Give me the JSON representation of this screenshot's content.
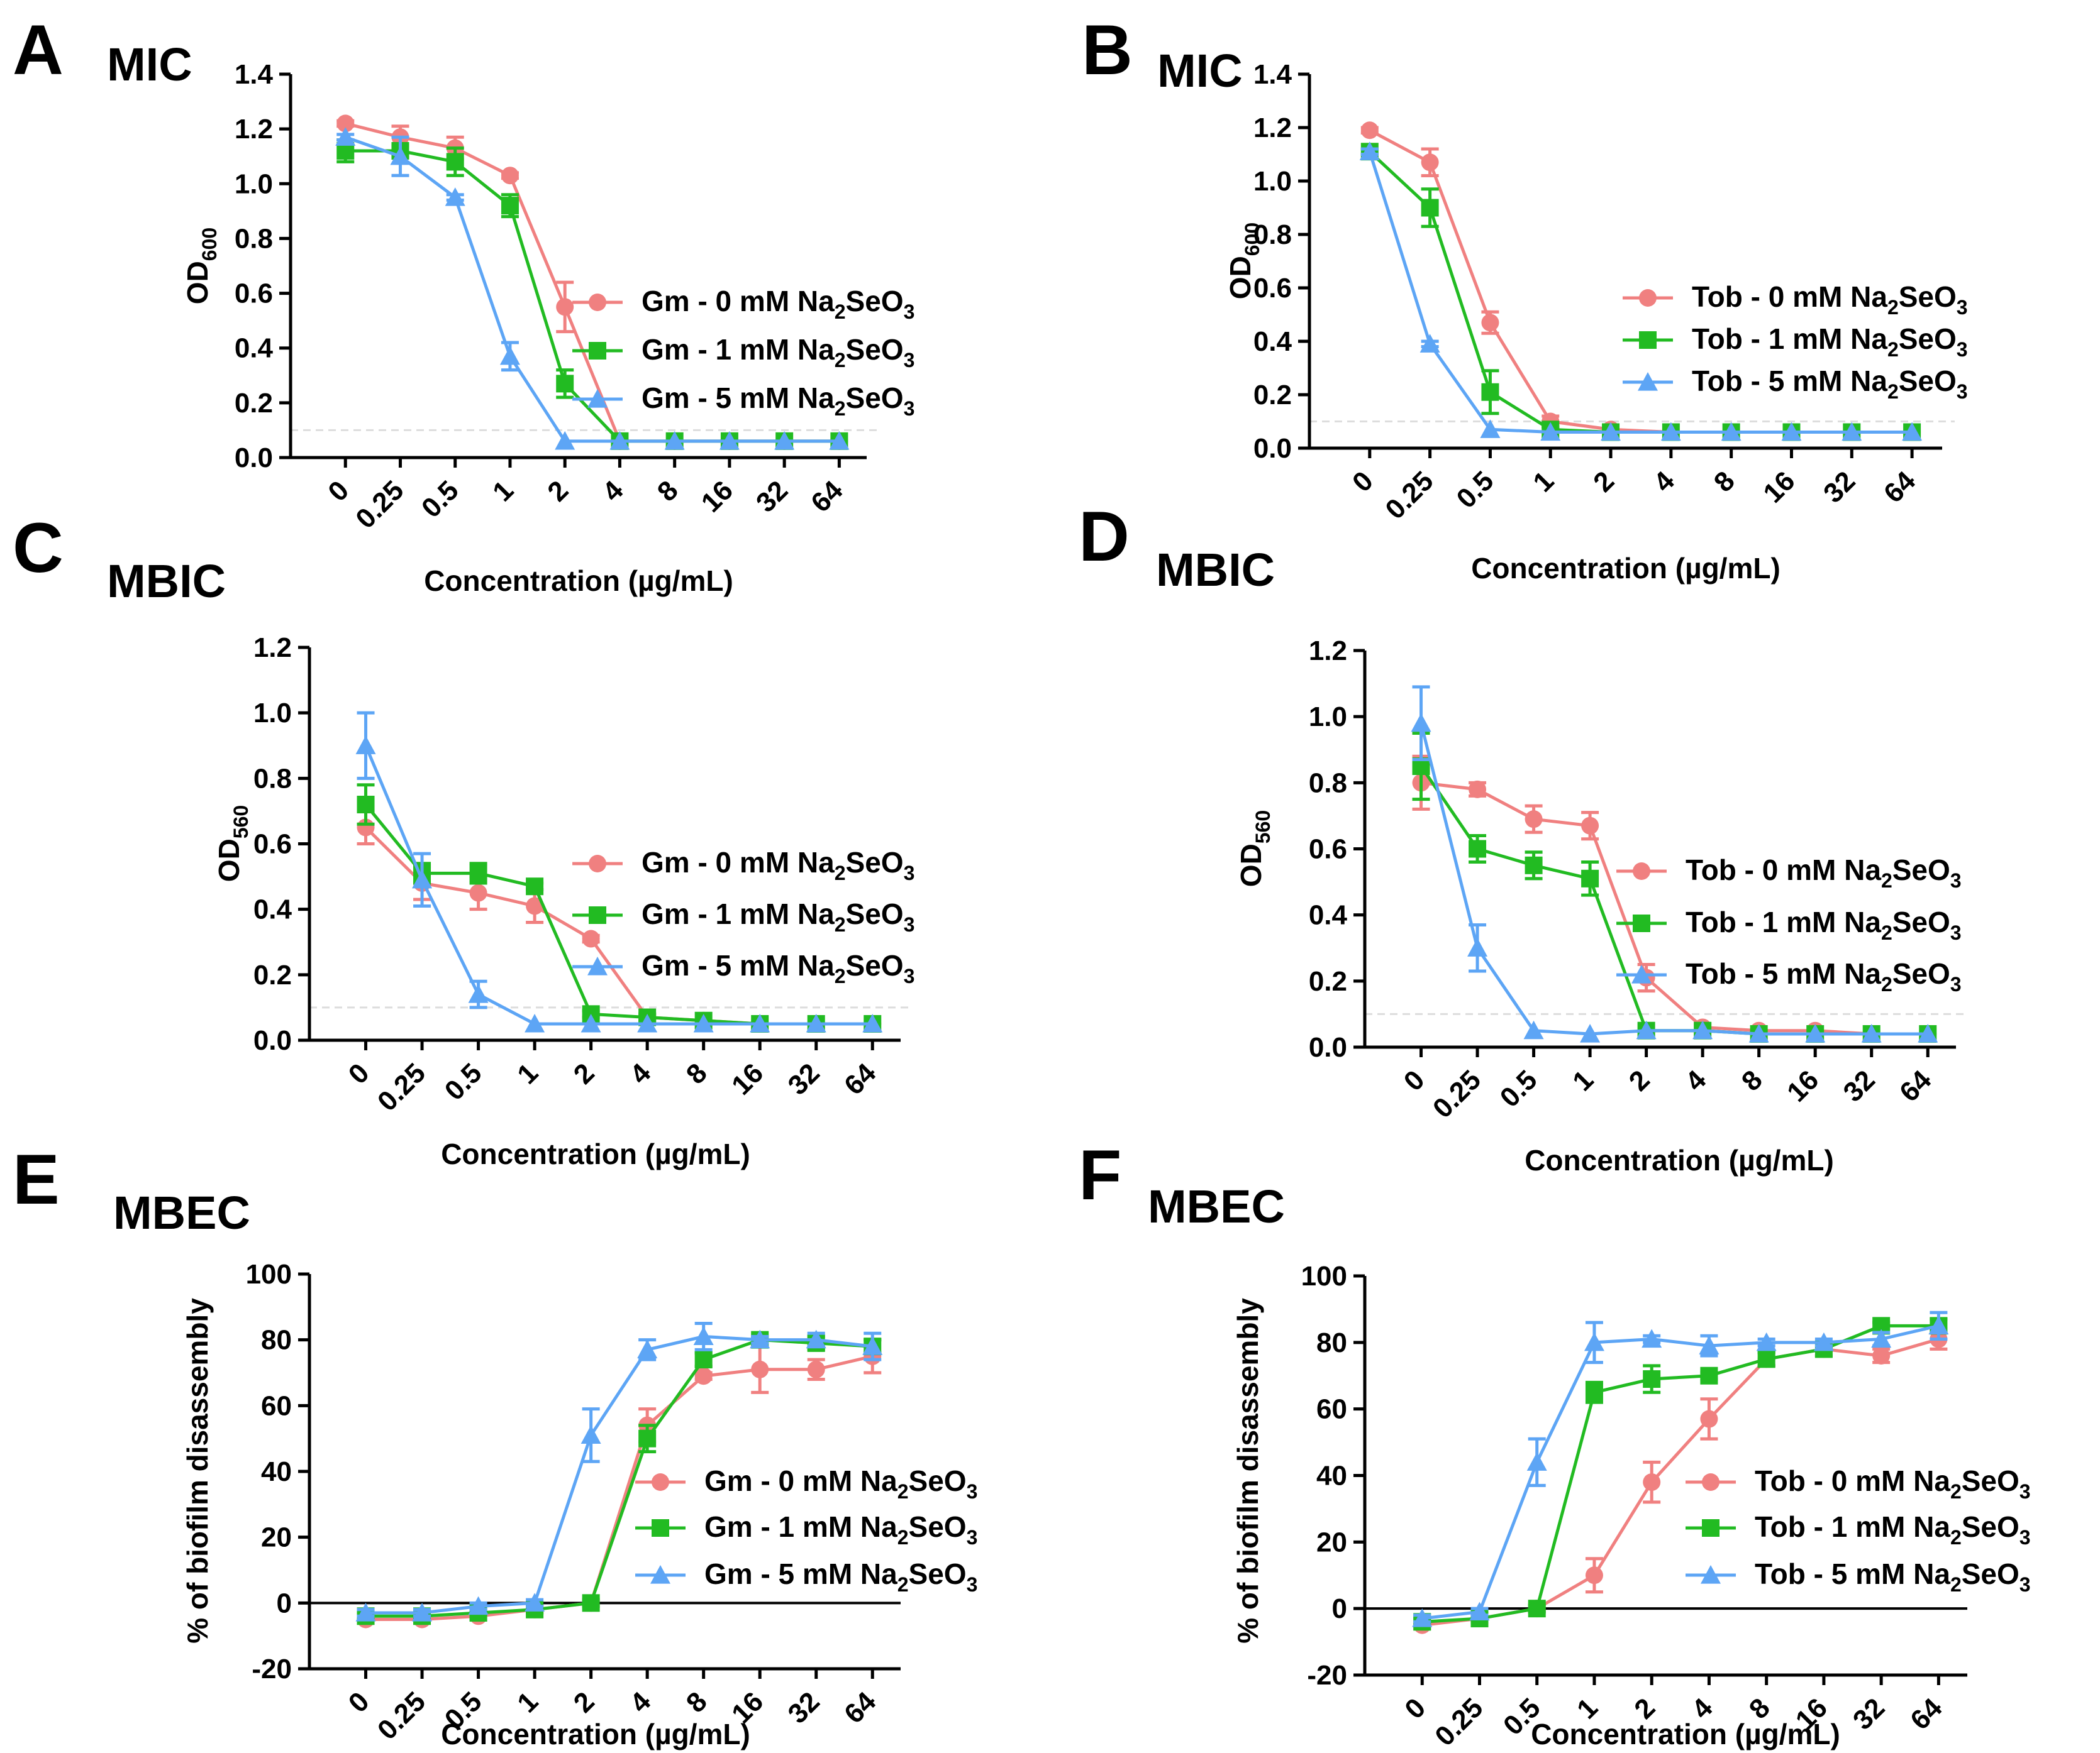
{
  "figure": {
    "x_categories": [
      "0",
      "0.25",
      "0.5",
      "1",
      "2",
      "4",
      "8",
      "16",
      "32",
      "64"
    ],
    "xlabel": "Concentration (µg/mL)",
    "series_colors": {
      "0 mM": "#F08080",
      "1 mM": "#22BB22",
      "5 mM": "#5DA5F5"
    },
    "series_markers": {
      "0 mM": "circle",
      "1 mM": "square",
      "5 mM": "triangle"
    },
    "threshold_line_color": "#DDDDDD"
  },
  "chart_data": [
    {
      "panel": "A",
      "title": "MIC",
      "type": "line",
      "ylabel": {
        "main": "OD",
        "sub": "600"
      },
      "ylim": [
        0,
        1.4
      ],
      "yticks": [
        "0.0",
        "0.2",
        "0.4",
        "0.6",
        "0.8",
        "1.0",
        "1.2",
        "1.4"
      ],
      "threshold": 0.1,
      "series": [
        {
          "name": "Gm - 0 mM Na2SeO3",
          "legend_parts": [
            "Gm - 0 mM Na",
            "2",
            "SeO",
            "3"
          ],
          "color": "#F08080",
          "marker": "circle",
          "values": [
            1.22,
            1.17,
            1.13,
            1.03,
            0.55,
            0.06,
            0.06,
            0.06,
            0.06,
            0.06
          ],
          "errors": [
            0.01,
            0.04,
            0.04,
            0.01,
            0.09,
            0.005,
            0.005,
            0.005,
            0.005,
            0.005
          ]
        },
        {
          "name": "Gm - 1 mM Na2SeO3",
          "legend_parts": [
            "Gm - 1 mM Na",
            "2",
            "SeO",
            "3"
          ],
          "color": "#22BB22",
          "marker": "square",
          "values": [
            1.12,
            1.12,
            1.08,
            0.92,
            0.27,
            0.06,
            0.06,
            0.06,
            0.06,
            0.06
          ],
          "errors": [
            0.04,
            0.02,
            0.05,
            0.04,
            0.05,
            0.005,
            0.005,
            0.005,
            0.005,
            0.005
          ]
        },
        {
          "name": "Gm - 5 mM Na2SeO3",
          "legend_parts": [
            "Gm - 5 mM Na",
            "2",
            "SeO",
            "3"
          ],
          "color": "#5DA5F5",
          "marker": "triangle",
          "values": [
            1.17,
            1.1,
            0.95,
            0.37,
            0.06,
            0.06,
            0.06,
            0.06,
            0.06,
            0.06
          ],
          "errors": [
            0.01,
            0.07,
            0.01,
            0.05,
            0.005,
            0.005,
            0.005,
            0.005,
            0.005,
            0.005
          ]
        }
      ]
    },
    {
      "panel": "B",
      "title": "MIC",
      "type": "line",
      "ylabel": {
        "main": "OD",
        "sub": "600"
      },
      "ylim": [
        0,
        1.4
      ],
      "yticks": [
        "0.0",
        "0.2",
        "0.4",
        "0.6",
        "0.8",
        "1.0",
        "1.2",
        "1.4"
      ],
      "threshold": 0.1,
      "series": [
        {
          "name": "Tob - 0 mM Na2SeO3",
          "legend_parts": [
            "Tob - 0 mM Na",
            "2",
            "SeO",
            "3"
          ],
          "color": "#F08080",
          "marker": "circle",
          "values": [
            1.19,
            1.07,
            0.47,
            0.1,
            0.07,
            0.06,
            0.06,
            0.06,
            0.06,
            0.06
          ],
          "errors": [
            0.01,
            0.05,
            0.04,
            0.02,
            0.005,
            0.005,
            0.005,
            0.005,
            0.005,
            0.005
          ]
        },
        {
          "name": "Tob - 1 mM Na2SeO3",
          "legend_parts": [
            "Tob - 1 mM Na",
            "2",
            "SeO",
            "3"
          ],
          "color": "#22BB22",
          "marker": "square",
          "values": [
            1.11,
            0.9,
            0.21,
            0.07,
            0.06,
            0.06,
            0.06,
            0.06,
            0.06,
            0.06
          ],
          "errors": [
            0.01,
            0.07,
            0.08,
            0.01,
            0.005,
            0.005,
            0.005,
            0.005,
            0.005,
            0.005
          ]
        },
        {
          "name": "Tob - 5 mM Na2SeO3",
          "legend_parts": [
            "Tob - 5 mM Na",
            "2",
            "SeO",
            "3"
          ],
          "color": "#5DA5F5",
          "marker": "triangle",
          "values": [
            1.11,
            0.39,
            0.07,
            0.06,
            0.06,
            0.06,
            0.06,
            0.06,
            0.06,
            0.06
          ],
          "errors": [
            0.01,
            0.01,
            0.005,
            0.005,
            0.005,
            0.005,
            0.005,
            0.005,
            0.005,
            0.005
          ]
        }
      ]
    },
    {
      "panel": "C",
      "title": "MBIC",
      "type": "line",
      "ylabel": {
        "main": "OD",
        "sub": "560"
      },
      "ylim": [
        0,
        1.2
      ],
      "yticks": [
        "0.0",
        "0.2",
        "0.4",
        "0.6",
        "0.8",
        "1.0",
        "1.2"
      ],
      "threshold": 0.1,
      "series": [
        {
          "name": "Gm - 0 mM Na2SeO3",
          "legend_parts": [
            "Gm - 0 mM Na",
            "2",
            "SeO",
            "3"
          ],
          "color": "#F08080",
          "marker": "circle",
          "values": [
            0.65,
            0.48,
            0.45,
            0.41,
            0.31,
            0.07,
            0.06,
            0.05,
            0.05,
            0.05
          ],
          "errors": [
            0.05,
            0.05,
            0.05,
            0.05,
            0.01,
            0.01,
            0.005,
            0.005,
            0.005,
            0.005
          ]
        },
        {
          "name": "Gm - 1 mM Na2SeO3",
          "legend_parts": [
            "Gm - 1 mM Na",
            "2",
            "SeO",
            "3"
          ],
          "color": "#22BB22",
          "marker": "square",
          "values": [
            0.72,
            0.51,
            0.51,
            0.47,
            0.08,
            0.07,
            0.06,
            0.05,
            0.05,
            0.05
          ],
          "errors": [
            0.06,
            0.03,
            0.03,
            0.01,
            0.01,
            0.01,
            0.005,
            0.005,
            0.005,
            0.005
          ]
        },
        {
          "name": "Gm - 5 mM Na2SeO3",
          "legend_parts": [
            "Gm - 5 mM Na",
            "2",
            "SeO",
            "3"
          ],
          "color": "#5DA5F5",
          "marker": "triangle",
          "values": [
            0.9,
            0.49,
            0.14,
            0.05,
            0.05,
            0.05,
            0.05,
            0.05,
            0.05,
            0.05
          ],
          "errors": [
            0.1,
            0.08,
            0.04,
            0.005,
            0.005,
            0.005,
            0.005,
            0.005,
            0.005,
            0.005
          ]
        }
      ]
    },
    {
      "panel": "D",
      "title": "MBIC",
      "type": "line",
      "ylabel": {
        "main": "OD",
        "sub": "560"
      },
      "ylim": [
        0,
        1.2
      ],
      "yticks": [
        "0.0",
        "0.2",
        "0.4",
        "0.6",
        "0.8",
        "1.0",
        "1.2"
      ],
      "threshold": 0.1,
      "series": [
        {
          "name": "Tob - 0 mM Na2SeO3",
          "legend_parts": [
            "Tob - 0 mM Na",
            "2",
            "SeO",
            "3"
          ],
          "color": "#F08080",
          "marker": "circle",
          "values": [
            0.8,
            0.78,
            0.69,
            0.67,
            0.21,
            0.06,
            0.05,
            0.05,
            0.04,
            0.04
          ],
          "errors": [
            0.08,
            0.02,
            0.04,
            0.04,
            0.04,
            0.01,
            0.005,
            0.005,
            0.005,
            0.005
          ]
        },
        {
          "name": "Tob - 1 mM Na2SeO3",
          "legend_parts": [
            "Tob - 1 mM Na",
            "2",
            "SeO",
            "3"
          ],
          "color": "#22BB22",
          "marker": "square",
          "values": [
            0.85,
            0.6,
            0.55,
            0.51,
            0.05,
            0.05,
            0.04,
            0.04,
            0.04,
            0.04
          ],
          "errors": [
            0.1,
            0.04,
            0.04,
            0.05,
            0.005,
            0.005,
            0.005,
            0.005,
            0.005,
            0.005
          ]
        },
        {
          "name": "Tob - 5 mM Na2SeO3",
          "legend_parts": [
            "Tob - 5 mM Na",
            "2",
            "SeO",
            "3"
          ],
          "color": "#5DA5F5",
          "marker": "triangle",
          "values": [
            0.98,
            0.3,
            0.05,
            0.04,
            0.05,
            0.05,
            0.04,
            0.04,
            0.04,
            0.04
          ],
          "errors": [
            0.11,
            0.07,
            0.005,
            0.005,
            0.005,
            0.005,
            0.005,
            0.005,
            0.005,
            0.005
          ]
        }
      ]
    },
    {
      "panel": "E",
      "title": "MBEC",
      "type": "line",
      "ylabel": {
        "main": "% of biofilm disassembly",
        "sub": ""
      },
      "ylim": [
        -20,
        100
      ],
      "yticks": [
        "-20",
        "0",
        "20",
        "40",
        "60",
        "80",
        "100"
      ],
      "zero_line": true,
      "series": [
        {
          "name": "Gm - 0 mM Na2SeO3",
          "legend_parts": [
            "Gm - 0 mM Na",
            "2",
            "SeO",
            "3"
          ],
          "color": "#F08080",
          "marker": "circle",
          "values": [
            -5,
            -5,
            -4,
            -2,
            0,
            54,
            69,
            71,
            71,
            75
          ],
          "errors": [
            1,
            1,
            1,
            1,
            1,
            5,
            1,
            7,
            3,
            5
          ]
        },
        {
          "name": "Gm - 1 mM Na2SeO3",
          "legend_parts": [
            "Gm - 1 mM Na",
            "2",
            "SeO",
            "3"
          ],
          "color": "#22BB22",
          "marker": "square",
          "values": [
            -4,
            -4,
            -3,
            -2,
            0,
            50,
            74,
            80,
            79,
            78
          ],
          "errors": [
            1,
            1,
            1,
            1,
            1,
            4,
            2,
            1,
            2,
            2
          ]
        },
        {
          "name": "Gm - 5 mM Na2SeO3",
          "legend_parts": [
            "Gm - 5 mM Na",
            "2",
            "SeO",
            "3"
          ],
          "color": "#5DA5F5",
          "marker": "triangle",
          "values": [
            -3,
            -3,
            -1,
            0,
            51,
            77,
            81,
            80,
            80,
            78
          ],
          "errors": [
            1,
            1,
            1,
            1,
            8,
            3,
            4,
            1,
            2,
            4
          ]
        }
      ]
    },
    {
      "panel": "F",
      "title": "MBEC",
      "type": "line",
      "ylabel": {
        "main": "% of biofilm disassembly",
        "sub": ""
      },
      "ylim": [
        -20,
        100
      ],
      "yticks": [
        "-20",
        "0",
        "20",
        "40",
        "60",
        "80",
        "100"
      ],
      "zero_line": true,
      "series": [
        {
          "name": "Tob - 0 mM Na2SeO3",
          "legend_parts": [
            "Tob - 0 mM Na",
            "2",
            "SeO",
            "3"
          ],
          "color": "#F08080",
          "marker": "circle",
          "values": [
            -5,
            -3,
            0,
            10,
            38,
            57,
            75,
            78,
            76,
            81
          ],
          "errors": [
            1,
            1,
            1,
            5,
            6,
            6,
            2,
            2,
            2,
            3
          ]
        },
        {
          "name": "Tob - 1 mM Na2SeO3",
          "legend_parts": [
            "Tob - 1 mM Na",
            "2",
            "SeO",
            "3"
          ],
          "color": "#22BB22",
          "marker": "square",
          "values": [
            -4,
            -3,
            0,
            65,
            69,
            70,
            75,
            78,
            85,
            85
          ],
          "errors": [
            1,
            1,
            1,
            3,
            4,
            1,
            2,
            2,
            1,
            2
          ]
        },
        {
          "name": "Tob - 5 mM Na2SeO3",
          "legend_parts": [
            "Tob - 5 mM Na",
            "2",
            "SeO",
            "3"
          ],
          "color": "#5DA5F5",
          "marker": "triangle",
          "values": [
            -3,
            -1,
            44,
            80,
            81,
            79,
            80,
            80,
            81,
            85
          ],
          "errors": [
            1,
            1,
            7,
            6,
            1,
            3,
            1,
            1,
            2,
            4
          ]
        }
      ]
    }
  ]
}
